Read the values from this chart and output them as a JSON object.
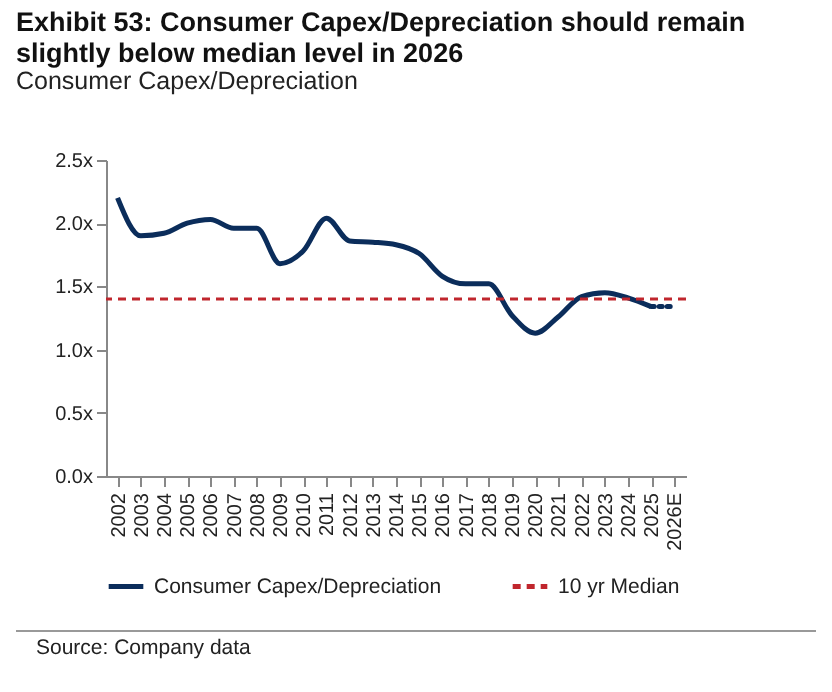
{
  "chart_data": {
    "type": "line",
    "title": "Exhibit 53: Consumer Capex/Depreciation should remain slightly below median level in 2026",
    "subtitle": "Consumer Capex/Depreciation",
    "categories": [
      "2002",
      "2003",
      "2004",
      "2005",
      "2006",
      "2007",
      "2008",
      "2009",
      "2010",
      "2011",
      "2012",
      "2013",
      "2014",
      "2015",
      "2016",
      "2017",
      "2018",
      "2019",
      "2020",
      "2021",
      "2022",
      "2023",
      "2024",
      "2025",
      "2026E"
    ],
    "series": [
      {
        "name": "Consumer Capex/Depreciation",
        "color": "#0b2d5b",
        "line_style": "solid",
        "values": [
          2.2,
          1.9,
          1.92,
          2.0,
          2.03,
          1.96,
          1.96,
          1.68,
          1.78,
          2.04,
          1.86,
          1.85,
          1.83,
          1.76,
          1.58,
          1.52,
          1.52,
          1.27,
          1.13,
          1.26,
          1.42,
          1.45,
          1.41,
          1.34,
          null
        ]
      },
      {
        "color": "#0b2d5b",
        "line_style": "dotted",
        "values": [
          null,
          null,
          null,
          null,
          null,
          null,
          null,
          null,
          null,
          null,
          null,
          null,
          null,
          null,
          null,
          null,
          null,
          null,
          null,
          null,
          null,
          null,
          null,
          1.34,
          1.34
        ]
      }
    ],
    "ref_lines": [
      {
        "axis": "y",
        "value": 1.4,
        "label": "10 yr Median",
        "color": "#c0262d",
        "line_style": "dashed"
      }
    ],
    "ylim": [
      0,
      2.5
    ],
    "yticks": [
      {
        "value": 0,
        "label": "0.0x"
      },
      {
        "value": 0.5,
        "label": "0.5x"
      },
      {
        "value": 1,
        "label": "1.0x"
      },
      {
        "value": 1.5,
        "label": "1.5x"
      },
      {
        "value": 2,
        "label": "2.0x"
      },
      {
        "value": 2.5,
        "label": "2.5x"
      }
    ],
    "grid": false,
    "legend": "bottom",
    "annotations": [
      "Source: Company data"
    ]
  }
}
